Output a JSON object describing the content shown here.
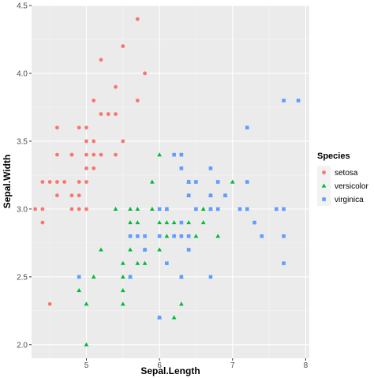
{
  "chart_data": {
    "type": "scatter",
    "xlabel": "Sepal.Length",
    "ylabel": "Sepal.Width",
    "xlim": [
      4.25,
      8.05
    ],
    "ylim": [
      1.9,
      4.5
    ],
    "xticks": [
      5,
      6,
      7,
      8
    ],
    "yticks": [
      2.0,
      2.5,
      3.0,
      3.5,
      4.0,
      4.5
    ],
    "ytick_labels": [
      "2.0",
      "2.5",
      "3.0",
      "3.5",
      "4.0",
      "4.5"
    ],
    "grid": true,
    "background": "#ebebeb",
    "legend": {
      "title": "Species",
      "position": "right"
    },
    "series": [
      {
        "name": "setosa",
        "color": "#f8766d",
        "shape": "circle",
        "points": [
          [
            5.7,
            4.4
          ],
          [
            5.5,
            4.2
          ],
          [
            5.2,
            4.1
          ],
          [
            5.8,
            4.0
          ],
          [
            5.4,
            3.9
          ],
          [
            5.1,
            3.8
          ],
          [
            5.7,
            3.8
          ],
          [
            5.2,
            3.7
          ],
          [
            5.4,
            3.7
          ],
          [
            5.3,
            3.7
          ],
          [
            5.0,
            3.6
          ],
          [
            4.6,
            3.6
          ],
          [
            4.9,
            3.6
          ],
          [
            5.5,
            3.5
          ],
          [
            5.1,
            3.5
          ],
          [
            5.0,
            3.5
          ],
          [
            4.8,
            3.4
          ],
          [
            5.0,
            3.4
          ],
          [
            5.1,
            3.4
          ],
          [
            5.2,
            3.4
          ],
          [
            5.4,
            3.4
          ],
          [
            4.6,
            3.4
          ],
          [
            4.8,
            3.4
          ],
          [
            5.0,
            3.3
          ],
          [
            5.1,
            3.3
          ],
          [
            4.5,
            3.2
          ],
          [
            4.6,
            3.2
          ],
          [
            4.7,
            3.2
          ],
          [
            4.4,
            3.2
          ],
          [
            4.9,
            3.2
          ],
          [
            5.0,
            3.2
          ],
          [
            4.8,
            3.1
          ],
          [
            4.9,
            3.1
          ],
          [
            4.6,
            3.1
          ],
          [
            4.3,
            3.0
          ],
          [
            4.4,
            3.0
          ],
          [
            4.8,
            3.0
          ],
          [
            4.9,
            3.0
          ],
          [
            5.0,
            3.0
          ],
          [
            4.4,
            2.9
          ],
          [
            4.5,
            2.3
          ]
        ]
      },
      {
        "name": "versicolor",
        "color": "#00ba38",
        "shape": "triangle",
        "points": [
          [
            6.0,
            3.4
          ],
          [
            5.9,
            3.2
          ],
          [
            6.4,
            3.2
          ],
          [
            7.0,
            3.2
          ],
          [
            6.9,
            3.1
          ],
          [
            6.7,
            3.1
          ],
          [
            6.4,
            3.1
          ],
          [
            5.6,
            3.0
          ],
          [
            6.6,
            3.0
          ],
          [
            6.7,
            3.0
          ],
          [
            5.7,
            3.0
          ],
          [
            5.4,
            3.0
          ],
          [
            5.9,
            3.0
          ],
          [
            6.1,
            3.0
          ],
          [
            5.6,
            2.9
          ],
          [
            6.2,
            2.9
          ],
          [
            6.0,
            2.9
          ],
          [
            5.7,
            2.9
          ],
          [
            6.1,
            2.9
          ],
          [
            6.4,
            2.9
          ],
          [
            6.6,
            2.9
          ],
          [
            6.1,
            2.8
          ],
          [
            6.5,
            2.8
          ],
          [
            6.8,
            2.8
          ],
          [
            5.8,
            2.7
          ],
          [
            5.6,
            2.7
          ],
          [
            6.0,
            2.7
          ],
          [
            5.2,
            2.7
          ],
          [
            5.5,
            2.6
          ],
          [
            5.8,
            2.6
          ],
          [
            5.7,
            2.6
          ],
          [
            5.6,
            2.5
          ],
          [
            5.5,
            2.5
          ],
          [
            5.1,
            2.5
          ],
          [
            6.3,
            2.5
          ],
          [
            4.9,
            2.4
          ],
          [
            5.5,
            2.4
          ],
          [
            6.3,
            2.3
          ],
          [
            5.0,
            2.3
          ],
          [
            5.5,
            2.3
          ],
          [
            6.2,
            2.2
          ],
          [
            6.0,
            2.2
          ],
          [
            5.0,
            2.0
          ]
        ]
      },
      {
        "name": "virginica",
        "color": "#619cff",
        "shape": "square",
        "points": [
          [
            7.7,
            3.8
          ],
          [
            7.9,
            3.8
          ],
          [
            7.2,
            3.6
          ],
          [
            6.3,
            3.4
          ],
          [
            6.2,
            3.4
          ],
          [
            6.3,
            3.3
          ],
          [
            6.7,
            3.3
          ],
          [
            6.4,
            3.2
          ],
          [
            6.5,
            3.2
          ],
          [
            6.8,
            3.2
          ],
          [
            7.2,
            3.2
          ],
          [
            6.4,
            3.1
          ],
          [
            6.9,
            3.1
          ],
          [
            6.7,
            3.1
          ],
          [
            6.5,
            3.0
          ],
          [
            6.8,
            3.0
          ],
          [
            6.7,
            3.0
          ],
          [
            7.2,
            3.0
          ],
          [
            6.1,
            3.0
          ],
          [
            6.0,
            3.0
          ],
          [
            7.6,
            3.0
          ],
          [
            7.7,
            3.0
          ],
          [
            6.4,
            2.8
          ],
          [
            5.8,
            2.8
          ],
          [
            6.3,
            2.9
          ],
          [
            7.3,
            2.9
          ],
          [
            7.1,
            3.0
          ],
          [
            6.2,
            2.8
          ],
          [
            7.4,
            2.8
          ],
          [
            6.3,
            2.8
          ],
          [
            5.8,
            2.7
          ],
          [
            6.4,
            2.7
          ],
          [
            5.6,
            2.8
          ],
          [
            6.0,
            2.8
          ],
          [
            7.7,
            2.8
          ],
          [
            6.1,
            2.6
          ],
          [
            5.7,
            2.8
          ],
          [
            7.7,
            2.6
          ],
          [
            6.3,
            2.5
          ],
          [
            6.7,
            2.5
          ],
          [
            5.6,
            2.5
          ],
          [
            4.9,
            2.5
          ],
          [
            6.0,
            2.2
          ]
        ]
      }
    ]
  }
}
